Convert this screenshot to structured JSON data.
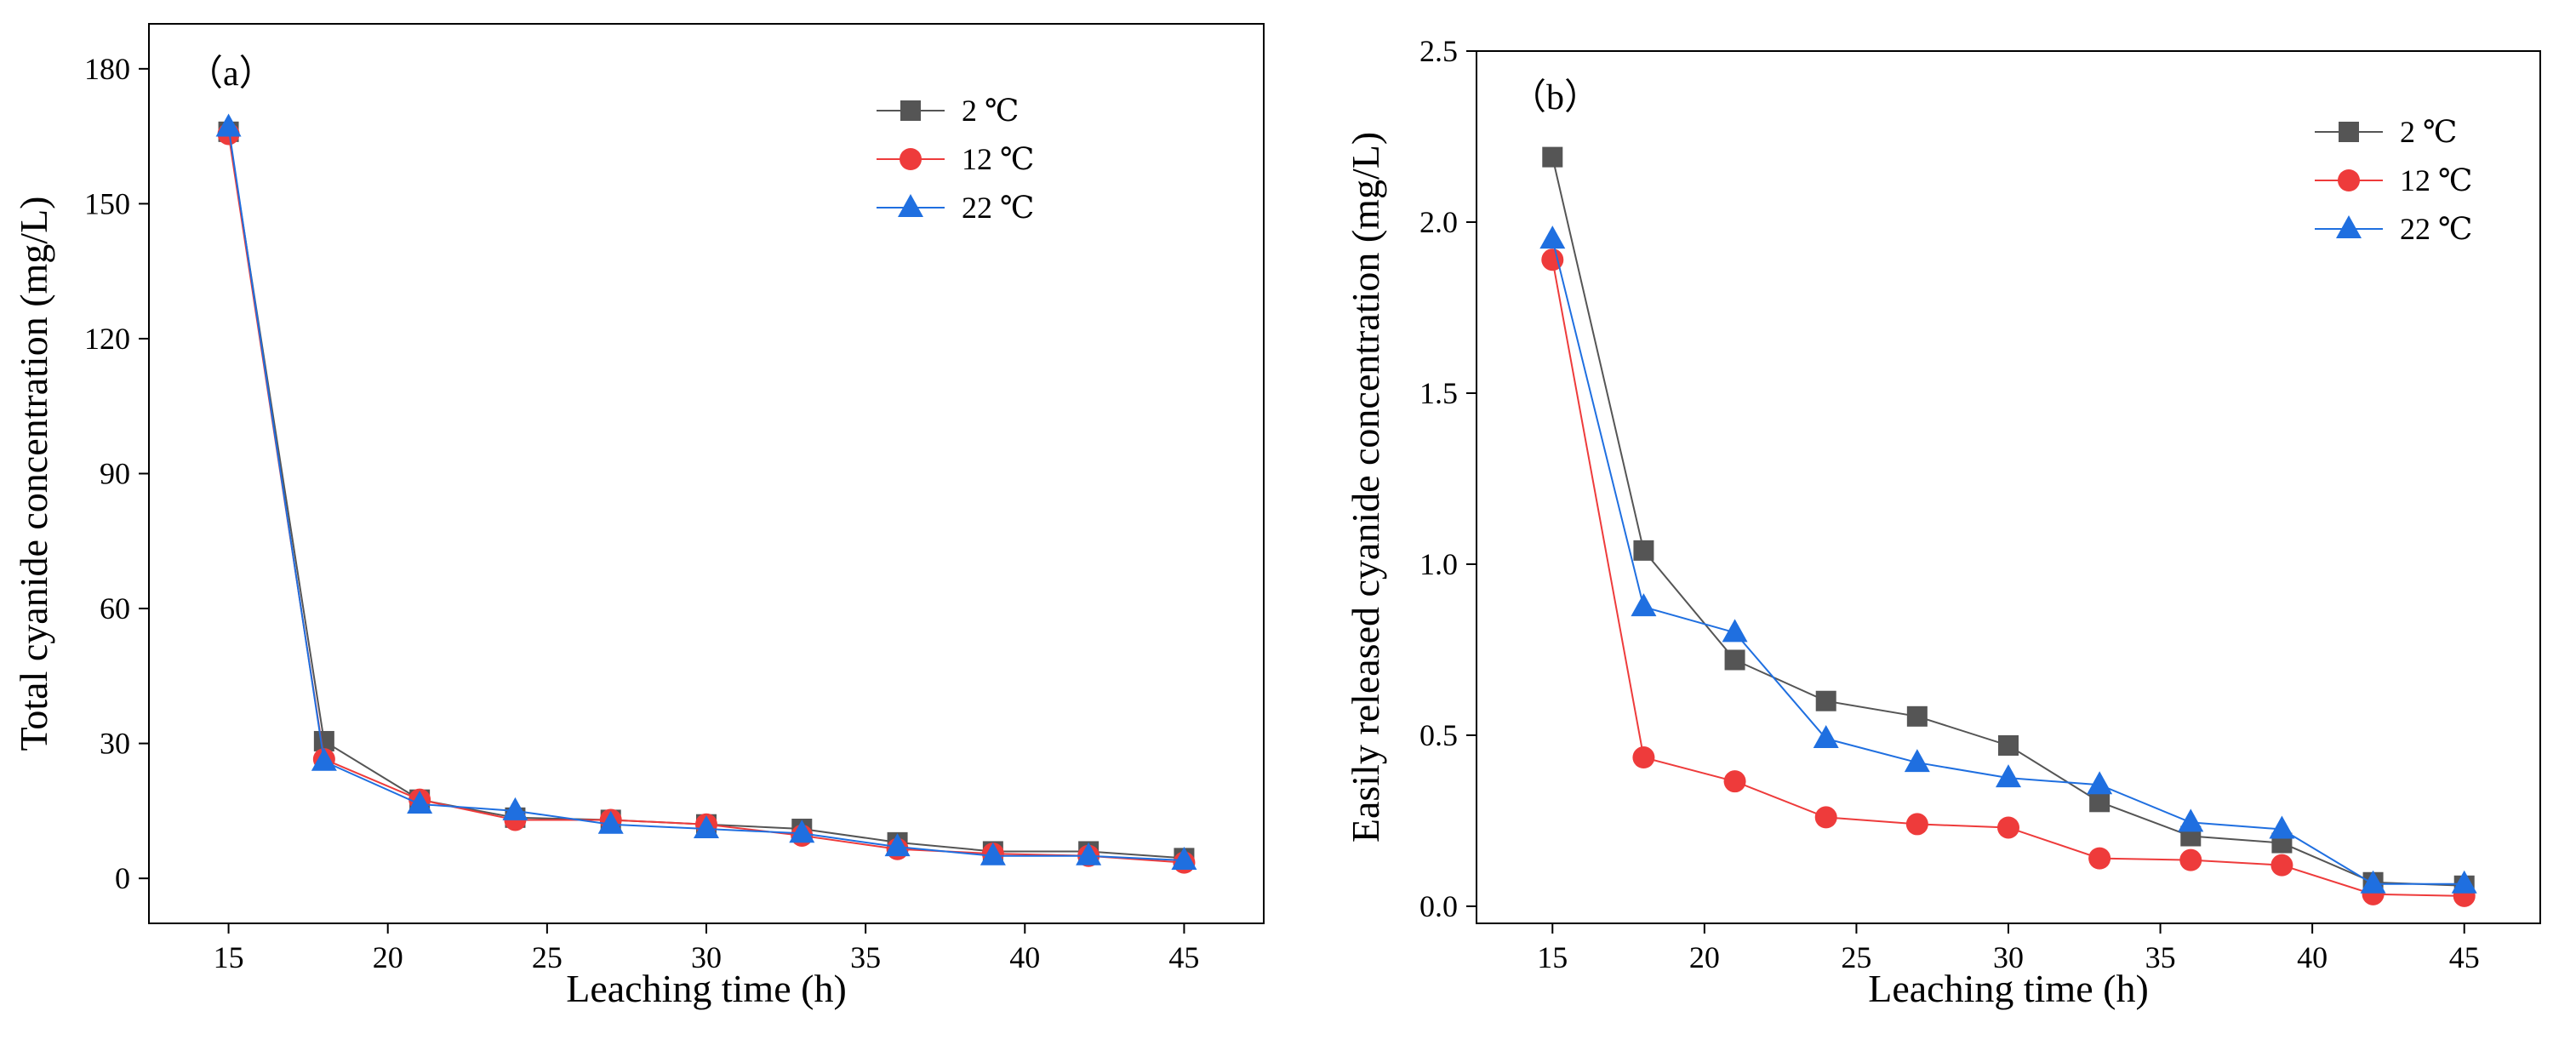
{
  "chart_data": [
    {
      "type": "line",
      "panel_label": "（a）",
      "xlabel": "Leaching time (h)",
      "ylabel": "Total cyanide concentration (mg/L)",
      "xlim": [
        12.5,
        47.5
      ],
      "ylim": [
        -10,
        190
      ],
      "xticks": [
        15,
        20,
        25,
        30,
        35,
        40,
        45
      ],
      "yticks": [
        0,
        30,
        60,
        90,
        120,
        150,
        180
      ],
      "legend_position": "top-right",
      "x": [
        15,
        18,
        21,
        24,
        27,
        30,
        33,
        36,
        39,
        42,
        45
      ],
      "series": [
        {
          "name": "2 ℃",
          "color": "#555555",
          "marker": "square",
          "values": [
            166,
            30.5,
            17.5,
            13.5,
            13,
            12,
            11,
            8,
            6,
            6,
            4.5
          ]
        },
        {
          "name": "12 ℃",
          "color": "#ee3b3b",
          "marker": "circle",
          "values": [
            165.5,
            26.5,
            17.5,
            13,
            13,
            12,
            9.5,
            6.5,
            5.5,
            5,
            3.5
          ]
        },
        {
          "name": "22 ℃",
          "color": "#1f6fe0",
          "marker": "triangle",
          "values": [
            167,
            26,
            16.5,
            15,
            12,
            11,
            10,
            7,
            5,
            5,
            4
          ]
        }
      ]
    },
    {
      "type": "line",
      "panel_label": "（b）",
      "xlabel": "Leaching time (h)",
      "ylabel": "Easily released cyanide concentration (mg/L)",
      "xlim": [
        12.5,
        47.5
      ],
      "ylim": [
        -0.05,
        2.5
      ],
      "xticks": [
        15,
        20,
        25,
        30,
        35,
        40,
        45
      ],
      "yticks": [
        "0.0",
        "0.5",
        "1.0",
        "1.5",
        "2.0",
        "2.5"
      ],
      "legend_position": "top-right",
      "x": [
        15,
        18,
        21,
        24,
        27,
        30,
        33,
        36,
        39,
        42,
        45
      ],
      "series": [
        {
          "name": "2 ℃",
          "color": "#555555",
          "marker": "square",
          "values": [
            2.19,
            1.04,
            0.72,
            0.6,
            0.555,
            0.47,
            0.305,
            0.205,
            0.185,
            0.07,
            0.06
          ]
        },
        {
          "name": "12 ℃",
          "color": "#ee3b3b",
          "marker": "circle",
          "values": [
            1.89,
            0.435,
            0.365,
            0.26,
            0.24,
            0.23,
            0.14,
            0.135,
            0.12,
            0.035,
            0.03
          ]
        },
        {
          "name": "22 ℃",
          "color": "#1f6fe0",
          "marker": "triangle",
          "values": [
            1.95,
            0.875,
            0.8,
            0.49,
            0.42,
            0.375,
            0.355,
            0.245,
            0.225,
            0.065,
            0.065
          ]
        }
      ]
    }
  ]
}
